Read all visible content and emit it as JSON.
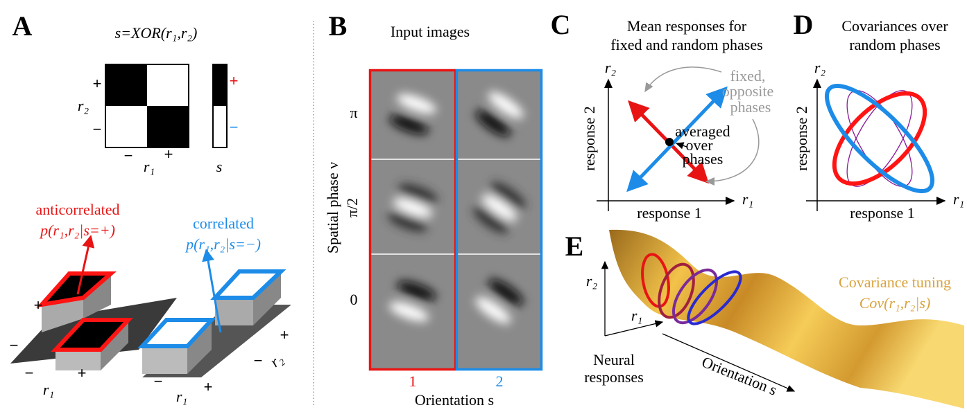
{
  "panels": {
    "a": {
      "label": "A",
      "title": "s=XOR(r₁,r₂)",
      "plus_y": "+",
      "minus_y": "−",
      "r2": "r₂",
      "minus_x": "−",
      "plus_x": "+",
      "r1": "r₁",
      "s": "s",
      "bar_plus": "+",
      "bar_minus": "−",
      "anticorrelated": "anticorrelated",
      "p_plus": "p(r₁,r₂|s=+)",
      "correlated": "correlated",
      "p_minus": "p(r₁,r₂|s=−)",
      "left_axis": [
        "+",
        "−",
        "−",
        "+",
        "r₁"
      ],
      "right_axis": [
        "−",
        "+",
        "r₁",
        "−",
        "+",
        "r₂"
      ]
    },
    "b": {
      "label": "B",
      "title": "Input images",
      "y_label": "Spatial phase ν",
      "y_ticks": [
        "π",
        "π/2",
        "0"
      ],
      "x_ticks": [
        "1",
        "2"
      ],
      "x_label": "Orientation s"
    },
    "c": {
      "label": "C",
      "title": [
        "Mean responses for",
        "fixed and random phases"
      ],
      "r2": "r₂",
      "r1": "r₁",
      "y_label": "response 2",
      "x_label": "response 1",
      "fixed": [
        "fixed,",
        "opposite",
        "phases"
      ],
      "averaged": [
        "averaged",
        "over",
        "phases"
      ]
    },
    "d": {
      "label": "D",
      "title": [
        "Covariances over",
        "random phases"
      ],
      "r2": "r₂",
      "r1": "r₁",
      "y_label": "response 2",
      "x_label": "response 1"
    },
    "e": {
      "label": "E",
      "r2": "r₂",
      "r1": "r₁",
      "neural": [
        "Neural",
        "responses"
      ],
      "orientation": "Orientation s",
      "tuning": [
        "Covariance tuning",
        "Cov(r₁,r₂|s)"
      ]
    }
  }
}
